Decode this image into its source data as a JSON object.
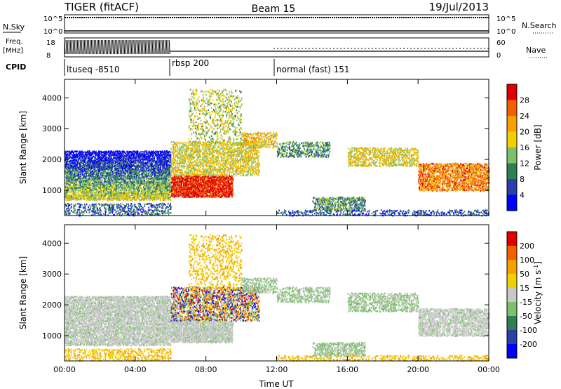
{
  "header": {
    "title": "TIGER (fitACF)",
    "beam": "Beam 15",
    "date": "19/Jul/2013"
  },
  "info_panels": {
    "nsky_label": "N.Sky",
    "nsearch_label": "N.Search",
    "nsky_ticks": [
      "10^5",
      "10^0"
    ],
    "nsearch_ticks": [
      "10^5",
      "10^0"
    ],
    "freq_label_1": "Freq.",
    "freq_label_2": "[MHz]",
    "freq_ticks": [
      "18",
      "8"
    ],
    "nave_label": "Nave",
    "nave_ticks": [
      "60",
      "0"
    ],
    "cpid_label": "CPID",
    "cpid_segments": [
      {
        "name": "ltuseq -8510",
        "start_hour": 0,
        "end_hour": 6
      },
      {
        "name": "rbsp 200",
        "start_hour": 6,
        "end_hour": 12
      },
      {
        "name": "normal (fast) 151",
        "start_hour": 12,
        "end_hour": 24
      }
    ]
  },
  "chart_data": [
    {
      "type": "heatmap",
      "quantity": "Power",
      "xlabel": "",
      "ylabel": "Slant Range [km]",
      "xlim_hours": [
        0,
        24
      ],
      "ylim": [
        180,
        4600
      ],
      "y_ticks": [
        "1000",
        "2000",
        "3000",
        "4000"
      ],
      "y_tick_values": [
        1000,
        2000,
        3000,
        4000
      ],
      "colorbar": {
        "label": "Power [dB]",
        "ticks": [
          "4",
          "8",
          "12",
          "16",
          "20",
          "24",
          "28"
        ],
        "colors": [
          "#0000ff",
          "#2a3fa8",
          "#2e7f52",
          "#7ec06e",
          "#f0d000",
          "#f5a000",
          "#f26000",
          "#e00000"
        ]
      }
    },
    {
      "type": "heatmap",
      "quantity": "Velocity",
      "xlabel": "Time UT",
      "ylabel": "Slant Range [km]",
      "xlim_hours": [
        0,
        24
      ],
      "ylim": [
        180,
        4600
      ],
      "y_ticks": [
        "1000",
        "2000",
        "3000",
        "4000"
      ],
      "y_tick_values": [
        1000,
        2000,
        3000,
        4000
      ],
      "x_ticks": [
        "00:00",
        "04:00",
        "08:00",
        "12:00",
        "16:00",
        "20:00",
        "00:00"
      ],
      "x_tick_hours": [
        0,
        4,
        8,
        12,
        16,
        20,
        24
      ],
      "colorbar": {
        "label": "Velocity [m s^-1]",
        "ticks": [
          "200",
          "100",
          "50",
          "15",
          "-15",
          "-50",
          "-100",
          "-200"
        ],
        "colors": [
          "#0000ff",
          "#2a3fa8",
          "#2e7f52",
          "#7ec06e",
          "#c8c8c8",
          "#f0d000",
          "#f5a000",
          "#f26000",
          "#e00000"
        ]
      }
    }
  ]
}
